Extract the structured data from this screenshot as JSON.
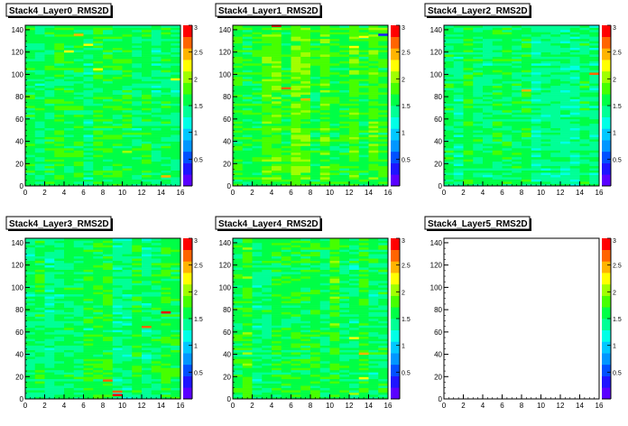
{
  "colors": {
    "palette": [
      "#5a00ff",
      "#1e14ff",
      "#0050ff",
      "#0096ff",
      "#00c8ff",
      "#00ffe6",
      "#00ff96",
      "#00ff46",
      "#46ff00",
      "#a0ff00",
      "#ffff00",
      "#ffb400",
      "#ff6400",
      "#ff0000"
    ],
    "background": "#ffffff",
    "title_box": "#ffffff"
  },
  "chart_data": [
    {
      "type": "heatmap",
      "title": "Stack4_Layer0_RMS2D",
      "xlabel": "",
      "ylabel": "",
      "xlim": [
        0,
        16
      ],
      "ylim": [
        0,
        144
      ],
      "zlim": [
        0,
        3
      ],
      "xticks": [
        "0",
        "2",
        "4",
        "6",
        "8",
        "10",
        "12",
        "14",
        "16"
      ],
      "yticks": [
        "0",
        "20",
        "40",
        "60",
        "80",
        "100",
        "120",
        "140"
      ],
      "zticks": [
        "0.5",
        "1",
        "1.5",
        "2",
        "2.5",
        "3"
      ],
      "typical_value": 1.55,
      "empty": false,
      "hot_cells": [
        {
          "x": 4.5,
          "y": 120,
          "v": 2.2
        },
        {
          "x": 5.5,
          "y": 135,
          "v": 2.5
        },
        {
          "x": 6.5,
          "y": 126,
          "v": 2.2
        },
        {
          "x": 7.5,
          "y": 104,
          "v": 2.3
        },
        {
          "x": 10.5,
          "y": 30,
          "v": 2.1
        },
        {
          "x": 14.5,
          "y": 8,
          "v": 2.4
        },
        {
          "x": 15.5,
          "y": 95,
          "v": 2.2
        }
      ]
    },
    {
      "type": "heatmap",
      "title": "Stack4_Layer1_RMS2D",
      "xlabel": "",
      "ylabel": "",
      "xlim": [
        0,
        16
      ],
      "ylim": [
        0,
        144
      ],
      "zlim": [
        0,
        3
      ],
      "xticks": [
        "0",
        "2",
        "4",
        "6",
        "8",
        "10",
        "12",
        "14",
        "16"
      ],
      "yticks": [
        "0",
        "20",
        "40",
        "60",
        "80",
        "100",
        "120",
        "140"
      ],
      "zticks": [
        "0.5",
        "1",
        "1.5",
        "2",
        "2.5",
        "3"
      ],
      "typical_value": 1.75,
      "empty": false,
      "hot_cells": [
        {
          "x": 4.5,
          "y": 143,
          "v": 2.8
        },
        {
          "x": 5.5,
          "y": 87,
          "v": 2.6
        },
        {
          "x": 7.5,
          "y": 77,
          "v": 2.5
        },
        {
          "x": 12.5,
          "y": 124,
          "v": 2.3
        },
        {
          "x": 13.5,
          "y": 133,
          "v": 2.2
        },
        {
          "x": 15.5,
          "y": 135,
          "v": 0.4
        }
      ]
    },
    {
      "type": "heatmap",
      "title": "Stack4_Layer2_RMS2D",
      "xlabel": "",
      "ylabel": "",
      "xlim": [
        0,
        16
      ],
      "ylim": [
        0,
        144
      ],
      "zlim": [
        0,
        3
      ],
      "xticks": [
        "0",
        "2",
        "4",
        "6",
        "8",
        "10",
        "12",
        "14",
        "16"
      ],
      "yticks": [
        "0",
        "20",
        "40",
        "60",
        "80",
        "100",
        "120",
        "140"
      ],
      "zticks": [
        "0.5",
        "1",
        "1.5",
        "2",
        "2.5",
        "3"
      ],
      "typical_value": 1.5,
      "empty": false,
      "hot_cells": [
        {
          "x": 8.5,
          "y": 85,
          "v": 2.5
        },
        {
          "x": 15.5,
          "y": 100,
          "v": 2.6
        },
        {
          "x": 3.5,
          "y": 100,
          "v": 1.9
        }
      ]
    },
    {
      "type": "heatmap",
      "title": "Stack4_Layer3_RMS2D",
      "xlabel": "",
      "ylabel": "",
      "xlim": [
        0,
        16
      ],
      "ylim": [
        0,
        144
      ],
      "zlim": [
        0,
        3
      ],
      "xticks": [
        "0",
        "2",
        "4",
        "6",
        "8",
        "10",
        "12",
        "14",
        "16"
      ],
      "yticks": [
        "0",
        "20",
        "40",
        "60",
        "80",
        "100",
        "120",
        "140"
      ],
      "zticks": [
        "0.5",
        "1",
        "1.5",
        "2",
        "2.5",
        "3"
      ],
      "typical_value": 1.55,
      "empty": false,
      "hot_cells": [
        {
          "x": 9.5,
          "y": 3,
          "v": 2.9
        },
        {
          "x": 9.5,
          "y": 6,
          "v": 2.7
        },
        {
          "x": 8.5,
          "y": 16,
          "v": 2.6
        },
        {
          "x": 12.5,
          "y": 64,
          "v": 2.6
        },
        {
          "x": 14.5,
          "y": 77,
          "v": 2.9
        },
        {
          "x": 6.5,
          "y": 62,
          "v": 1.2
        }
      ]
    },
    {
      "type": "heatmap",
      "title": "Stack4_Layer4_RMS2D",
      "xlabel": "",
      "ylabel": "",
      "xlim": [
        0,
        16
      ],
      "ylim": [
        0,
        144
      ],
      "zlim": [
        0,
        3
      ],
      "xticks": [
        "0",
        "2",
        "4",
        "6",
        "8",
        "10",
        "12",
        "14",
        "16"
      ],
      "yticks": [
        "0",
        "20",
        "40",
        "60",
        "80",
        "100",
        "120",
        "140"
      ],
      "zticks": [
        "0.5",
        "1",
        "1.5",
        "2",
        "2.5",
        "3"
      ],
      "typical_value": 1.6,
      "empty": false,
      "hot_cells": [
        {
          "x": 12.5,
          "y": 54,
          "v": 2.3
        },
        {
          "x": 13.5,
          "y": 40,
          "v": 2.5
        },
        {
          "x": 13.5,
          "y": 18,
          "v": 2.2
        },
        {
          "x": 12.5,
          "y": 4,
          "v": 2.0
        }
      ]
    },
    {
      "type": "heatmap",
      "title": "Stack4_Layer5_RMS2D",
      "xlabel": "",
      "ylabel": "",
      "xlim": [
        0,
        16
      ],
      "ylim": [
        0,
        144
      ],
      "zlim": [
        0,
        3
      ],
      "xticks": [
        "0",
        "2",
        "4",
        "6",
        "8",
        "10",
        "12",
        "14",
        "16"
      ],
      "yticks": [
        "0",
        "20",
        "40",
        "60",
        "80",
        "100",
        "120",
        "140"
      ],
      "zticks": [
        "0.5",
        "1",
        "1.5",
        "2",
        "2.5",
        "3"
      ],
      "typical_value": 0,
      "empty": true,
      "hot_cells": []
    }
  ]
}
